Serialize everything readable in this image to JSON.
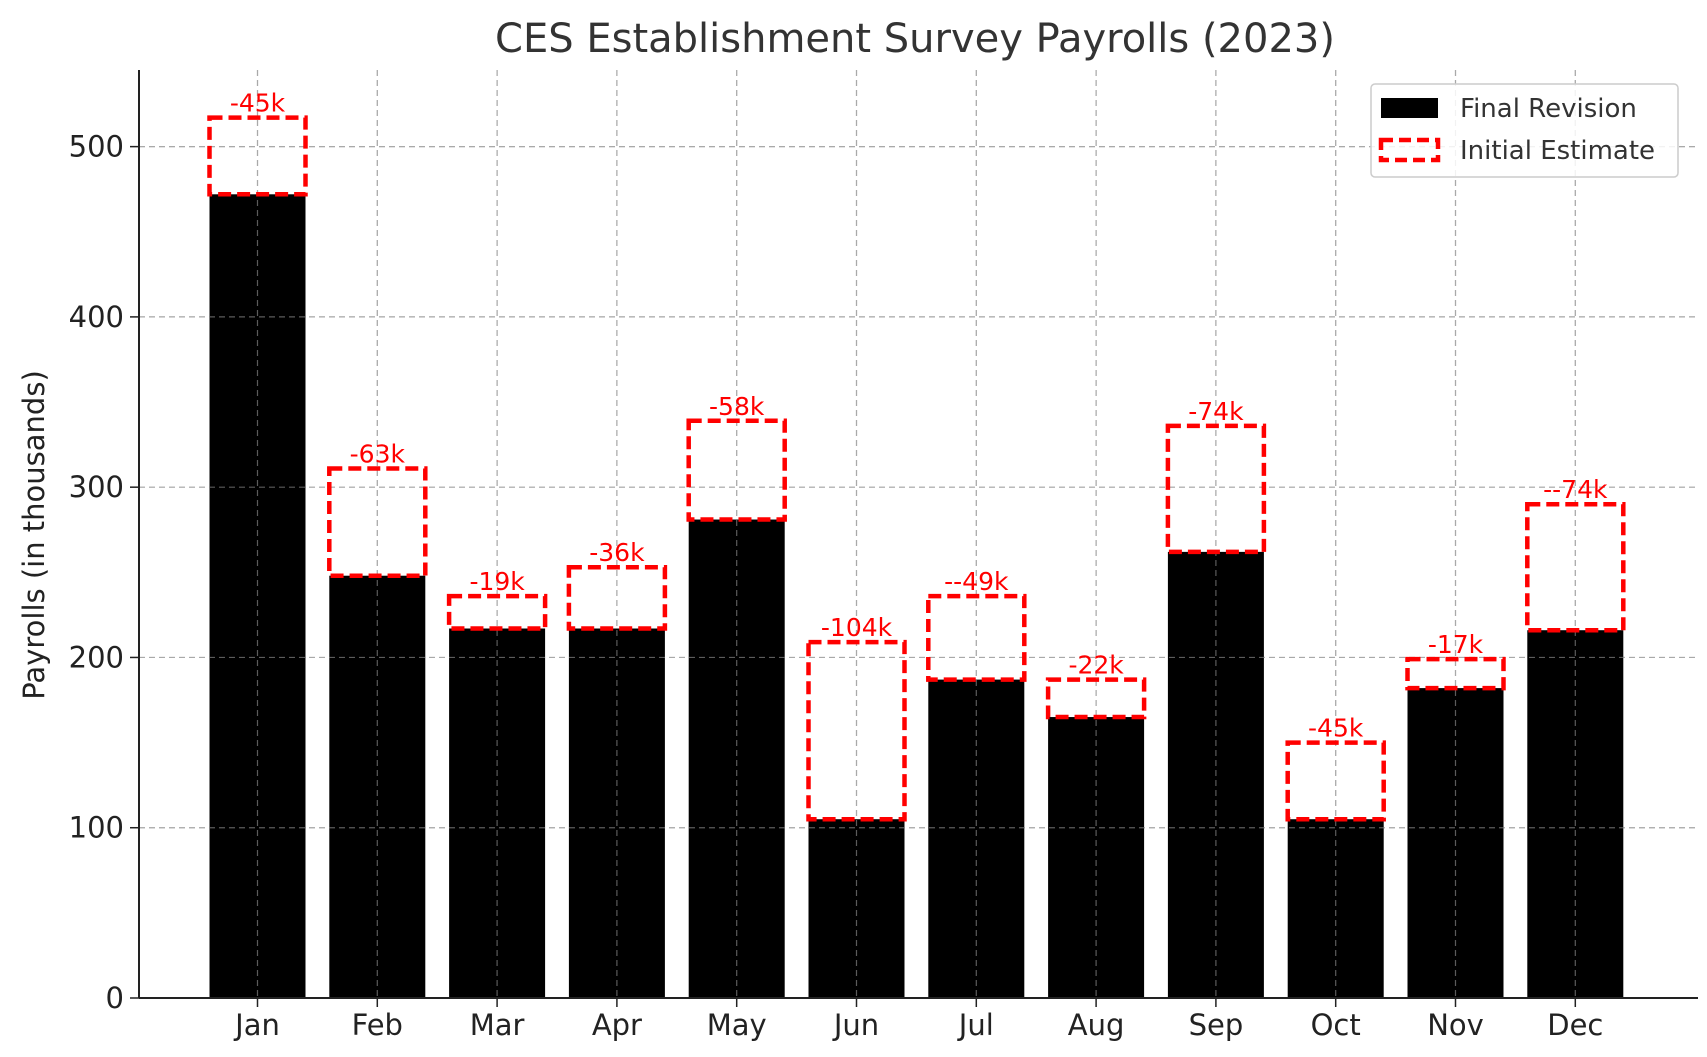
{
  "chart_data": {
    "type": "bar",
    "title": "CES Establishment Survey Payrolls (2023)",
    "xlabel": "",
    "ylabel": "Payrolls (in thousands)",
    "ylim": [
      0,
      545
    ],
    "yticks": [
      0,
      100,
      200,
      300,
      400,
      500
    ],
    "grid": true,
    "legend_position": "top-right",
    "categories": [
      "Jan",
      "Feb",
      "Mar",
      "Apr",
      "May",
      "Jun",
      "Jul",
      "Aug",
      "Sep",
      "Oct",
      "Nov",
      "Dec"
    ],
    "series": [
      {
        "name": "Final Revision",
        "style": "filled",
        "color": "#000000",
        "values": [
          472,
          248,
          217,
          217,
          281,
          105,
          187,
          165,
          262,
          105,
          182,
          216
        ]
      },
      {
        "name": "Initial Estimate",
        "style": "dashed-outline",
        "color": "#ff0000",
        "values": [
          517,
          311,
          236,
          253,
          339,
          209,
          236,
          187,
          336,
          150,
          199,
          290
        ]
      }
    ],
    "annotations": [
      "-45k",
      "-63k",
      "-19k",
      "-36k",
      "-58k",
      "-104k",
      "--49k",
      "-22k",
      "-74k",
      "-45k",
      "-17k",
      "--74k"
    ],
    "annotation_color": "#ff0000"
  }
}
